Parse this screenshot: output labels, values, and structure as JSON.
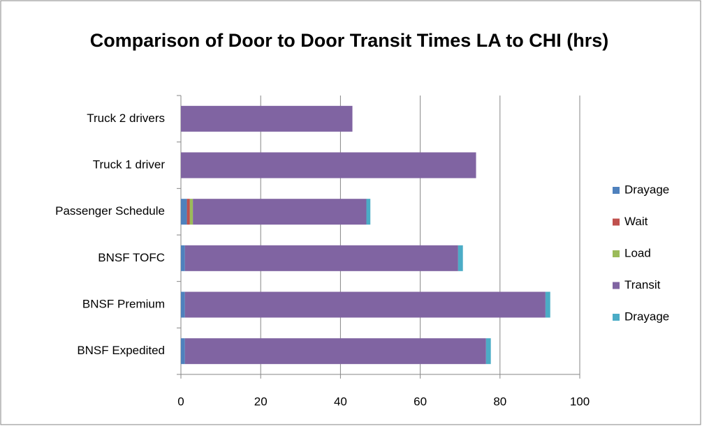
{
  "chart_data": {
    "type": "stacked_barh",
    "title": "Comparison of Door to Door Transit Times LA to CHI (hrs)",
    "categories": [
      "Truck 2 drivers",
      "Truck 1 driver",
      "Passenger Schedule",
      "BNSF TOFC",
      "BNSF Premium",
      "BNSF Expedited"
    ],
    "series": [
      {
        "name": "Drayage",
        "color": "#4f81bd",
        "values": [
          0,
          0,
          1.5,
          1,
          1,
          1
        ]
      },
      {
        "name": "Wait",
        "color": "#c0504d",
        "values": [
          0,
          0,
          0.75,
          0,
          0,
          0
        ]
      },
      {
        "name": "Load",
        "color": "#9bbb59",
        "values": [
          0,
          0,
          0.75,
          0,
          0,
          0
        ]
      },
      {
        "name": "Transit",
        "color": "#8064a2",
        "values": [
          43,
          74,
          43.5,
          68.5,
          90.4,
          75.5
        ]
      },
      {
        "name": "Drayage",
        "color": "#4bacc6",
        "values": [
          0,
          0,
          1,
          1.2,
          1.2,
          1.2
        ]
      }
    ],
    "xlim": [
      0,
      100
    ],
    "xticks": [
      0,
      20,
      40,
      60,
      80,
      100
    ],
    "grid": true,
    "legend": "right"
  }
}
